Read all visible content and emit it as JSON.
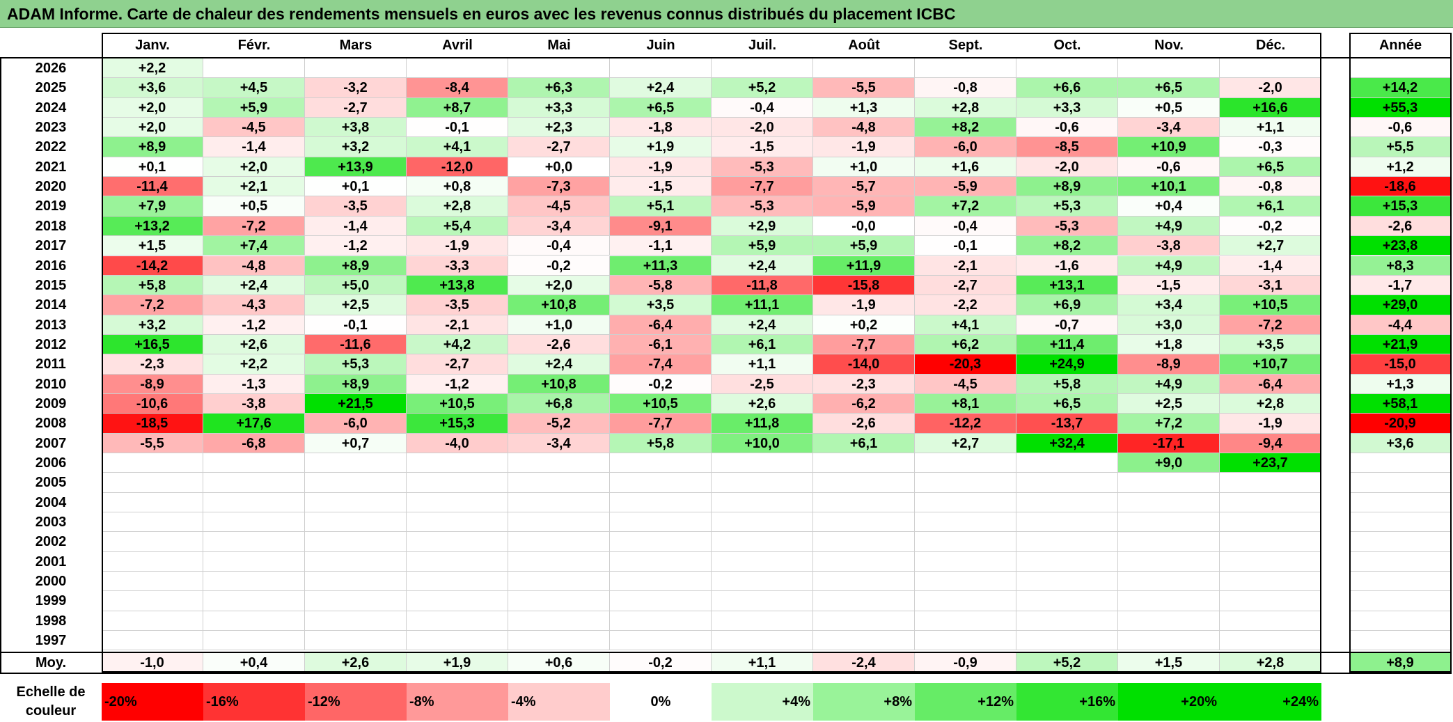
{
  "title": "ADAM Informe. Carte de chaleur des rendements mensuels en euros avec les revenus connus distribués du placement ICBC",
  "colors": {
    "title_bg": "#8fd18f",
    "positive_max": "#00e000",
    "negative_max": "#ff0000",
    "neutral": "#ffffff"
  },
  "chart_data": {
    "type": "heatmap",
    "title": "ADAM Informe. Carte de chaleur des rendements mensuels en euros avec les revenus connus distribués du placement ICBC",
    "months": [
      "Janv.",
      "Févr.",
      "Mars",
      "Avril",
      "Mai",
      "Juin",
      "Juil.",
      "Août",
      "Sept.",
      "Oct.",
      "Nov.",
      "Déc."
    ],
    "year_header": "Année",
    "rows": [
      {
        "year": "2026",
        "values": [
          "+2,2",
          "",
          "",
          "",
          "",
          "",
          "",
          "",
          "",
          "",
          "",
          ""
        ],
        "annual": ""
      },
      {
        "year": "2025",
        "values": [
          "+3,6",
          "+4,5",
          "-3,2",
          "-8,4",
          "+6,3",
          "+2,4",
          "+5,2",
          "-5,5",
          "-0,8",
          "+6,6",
          "+6,5",
          "-2,0"
        ],
        "annual": "+14,2"
      },
      {
        "year": "2024",
        "values": [
          "+2,0",
          "+5,9",
          "-2,7",
          "+8,7",
          "+3,3",
          "+6,5",
          "-0,4",
          "+1,3",
          "+2,8",
          "+3,3",
          "+0,5",
          "+16,6"
        ],
        "annual": "+55,3"
      },
      {
        "year": "2023",
        "values": [
          "+2,0",
          "-4,5",
          "+3,8",
          "-0,1",
          "+2,3",
          "-1,8",
          "-2,0",
          "-4,8",
          "+8,2",
          "-0,6",
          "-3,4",
          "+1,1"
        ],
        "annual": "-0,6"
      },
      {
        "year": "2022",
        "values": [
          "+8,9",
          "-1,4",
          "+3,2",
          "+4,1",
          "-2,7",
          "+1,9",
          "-1,5",
          "-1,9",
          "-6,0",
          "-8,5",
          "+10,9",
          "-0,3"
        ],
        "annual": "+5,5"
      },
      {
        "year": "2021",
        "values": [
          "+0,1",
          "+2,0",
          "+13,9",
          "-12,0",
          "+0,0",
          "-1,9",
          "-5,3",
          "+1,0",
          "+1,6",
          "-2,0",
          "-0,6",
          "+6,5"
        ],
        "annual": "+1,2"
      },
      {
        "year": "2020",
        "values": [
          "-11,4",
          "+2,1",
          "+0,1",
          "+0,8",
          "-7,3",
          "-1,5",
          "-7,7",
          "-5,7",
          "-5,9",
          "+8,9",
          "+10,1",
          "-0,8"
        ],
        "annual": "-18,6"
      },
      {
        "year": "2019",
        "values": [
          "+7,9",
          "+0,5",
          "-3,5",
          "+2,8",
          "-4,5",
          "+5,1",
          "-5,3",
          "-5,9",
          "+7,2",
          "+5,3",
          "+0,4",
          "+6,1"
        ],
        "annual": "+15,3"
      },
      {
        "year": "2018",
        "values": [
          "+13,2",
          "-7,2",
          "-1,4",
          "+5,4",
          "-3,4",
          "-9,1",
          "+2,9",
          "-0,0",
          "-0,4",
          "-5,3",
          "+4,9",
          "-0,2"
        ],
        "annual": "-2,6"
      },
      {
        "year": "2017",
        "values": [
          "+1,5",
          "+7,4",
          "-1,2",
          "-1,9",
          "-0,4",
          "-1,1",
          "+5,9",
          "+5,9",
          "-0,1",
          "+8,2",
          "-3,8",
          "+2,7"
        ],
        "annual": "+23,8"
      },
      {
        "year": "2016",
        "values": [
          "-14,2",
          "-4,8",
          "+8,9",
          "-3,3",
          "-0,2",
          "+11,3",
          "+2,4",
          "+11,9",
          "-2,1",
          "-1,6",
          "+4,9",
          "-1,4"
        ],
        "annual": "+8,3"
      },
      {
        "year": "2015",
        "values": [
          "+5,8",
          "+2,4",
          "+5,0",
          "+13,8",
          "+2,0",
          "-5,8",
          "-11,8",
          "-15,8",
          "-2,7",
          "+13,1",
          "-1,5",
          "-3,1"
        ],
        "annual": "-1,7"
      },
      {
        "year": "2014",
        "values": [
          "-7,2",
          "-4,3",
          "+2,5",
          "-3,5",
          "+10,8",
          "+3,5",
          "+11,1",
          "-1,9",
          "-2,2",
          "+6,9",
          "+3,4",
          "+10,5"
        ],
        "annual": "+29,0"
      },
      {
        "year": "2013",
        "values": [
          "+3,2",
          "-1,2",
          "-0,1",
          "-2,1",
          "+1,0",
          "-6,4",
          "+2,4",
          "+0,2",
          "+4,1",
          "-0,7",
          "+3,0",
          "-7,2"
        ],
        "annual": "-4,4"
      },
      {
        "year": "2012",
        "values": [
          "+16,5",
          "+2,6",
          "-11,6",
          "+4,2",
          "-2,6",
          "-6,1",
          "+6,1",
          "-7,7",
          "+6,2",
          "+11,4",
          "+1,8",
          "+3,5"
        ],
        "annual": "+21,9"
      },
      {
        "year": "2011",
        "values": [
          "-2,3",
          "+2,2",
          "+5,3",
          "-2,7",
          "+2,4",
          "-7,4",
          "+1,1",
          "-14,0",
          "-20,3",
          "+24,9",
          "-8,9",
          "+10,7"
        ],
        "annual": "-15,0"
      },
      {
        "year": "2010",
        "values": [
          "-8,9",
          "-1,3",
          "+8,9",
          "-1,2",
          "+10,8",
          "-0,2",
          "-2,5",
          "-2,3",
          "-4,5",
          "+5,8",
          "+4,9",
          "-6,4"
        ],
        "annual": "+1,3"
      },
      {
        "year": "2009",
        "values": [
          "-10,6",
          "-3,8",
          "+21,5",
          "+10,5",
          "+6,8",
          "+10,5",
          "+2,6",
          "-6,2",
          "+8,1",
          "+6,5",
          "+2,5",
          "+2,8"
        ],
        "annual": "+58,1"
      },
      {
        "year": "2008",
        "values": [
          "-18,5",
          "+17,6",
          "-6,0",
          "+15,3",
          "-5,2",
          "-7,7",
          "+11,8",
          "-2,6",
          "-12,2",
          "-13,7",
          "+7,2",
          "-1,9"
        ],
        "annual": "-20,9"
      },
      {
        "year": "2007",
        "values": [
          "-5,5",
          "-6,8",
          "+0,7",
          "-4,0",
          "-3,4",
          "+5,8",
          "+10,0",
          "+6,1",
          "+2,7",
          "+32,4",
          "-17,1",
          "-9,4"
        ],
        "annual": "+3,6"
      },
      {
        "year": "2006",
        "values": [
          "",
          "",
          "",
          "",
          "",
          "",
          "",
          "",
          "",
          "",
          "+9,0",
          "+23,7"
        ],
        "annual": ""
      },
      {
        "year": "2005",
        "values": [
          "",
          "",
          "",
          "",
          "",
          "",
          "",
          "",
          "",
          "",
          "",
          ""
        ],
        "annual": ""
      },
      {
        "year": "2004",
        "values": [
          "",
          "",
          "",
          "",
          "",
          "",
          "",
          "",
          "",
          "",
          "",
          ""
        ],
        "annual": ""
      },
      {
        "year": "2003",
        "values": [
          "",
          "",
          "",
          "",
          "",
          "",
          "",
          "",
          "",
          "",
          "",
          ""
        ],
        "annual": ""
      },
      {
        "year": "2002",
        "values": [
          "",
          "",
          "",
          "",
          "",
          "",
          "",
          "",
          "",
          "",
          "",
          ""
        ],
        "annual": ""
      },
      {
        "year": "2001",
        "values": [
          "",
          "",
          "",
          "",
          "",
          "",
          "",
          "",
          "",
          "",
          "",
          ""
        ],
        "annual": ""
      },
      {
        "year": "2000",
        "values": [
          "",
          "",
          "",
          "",
          "",
          "",
          "",
          "",
          "",
          "",
          "",
          ""
        ],
        "annual": ""
      },
      {
        "year": "1999",
        "values": [
          "",
          "",
          "",
          "",
          "",
          "",
          "",
          "",
          "",
          "",
          "",
          ""
        ],
        "annual": ""
      },
      {
        "year": "1998",
        "values": [
          "",
          "",
          "",
          "",
          "",
          "",
          "",
          "",
          "",
          "",
          "",
          ""
        ],
        "annual": ""
      },
      {
        "year": "1997",
        "values": [
          "",
          "",
          "",
          "",
          "",
          "",
          "",
          "",
          "",
          "",
          "",
          ""
        ],
        "annual": ""
      }
    ],
    "average_label": "Moy.",
    "averages": [
      "-1,0",
      "+0,4",
      "+2,6",
      "+1,9",
      "+0,6",
      "-0,2",
      "+1,1",
      "-2,4",
      "-0,9",
      "+5,2",
      "+1,5",
      "+2,8"
    ],
    "average_annual": "+8,9",
    "scale_label": "Echelle de couleur",
    "scale": [
      "-20%",
      "-16%",
      "-12%",
      "-8%",
      "-4%",
      "0%",
      "+4%",
      "+8%",
      "+12%",
      "+16%",
      "+20%",
      "+24%"
    ]
  }
}
